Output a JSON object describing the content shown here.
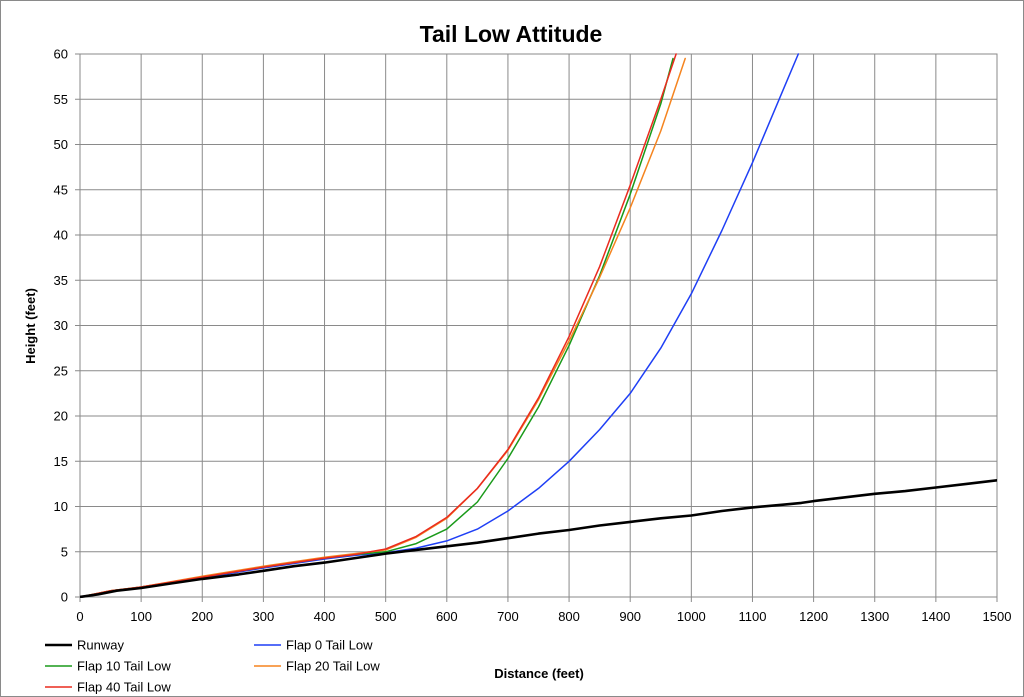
{
  "chart_data": {
    "type": "line",
    "title": "Tail Low Attitude",
    "xlabel": "Distance (feet)",
    "ylabel": "Height (feet)",
    "xlim": [
      0,
      1500
    ],
    "ylim": [
      0,
      60
    ],
    "xticks": [
      0,
      100,
      200,
      300,
      400,
      500,
      600,
      700,
      800,
      900,
      1000,
      1100,
      1200,
      1300,
      1400,
      1500
    ],
    "yticks": [
      0,
      5,
      10,
      15,
      20,
      25,
      30,
      35,
      40,
      45,
      50,
      55,
      60
    ],
    "grid": true,
    "legend_position": "bottom",
    "series": [
      {
        "name": "Runway",
        "color": "#000000",
        "x": [
          0,
          30,
          60,
          100,
          150,
          200,
          260,
          300,
          350,
          400,
          450,
          500,
          550,
          600,
          650,
          700,
          750,
          800,
          850,
          900,
          950,
          1000,
          1050,
          1100,
          1150,
          1180,
          1200,
          1250,
          1300,
          1350,
          1400,
          1450,
          1500
        ],
        "y": [
          0,
          0.3,
          0.7,
          1.0,
          1.5,
          2.0,
          2.5,
          2.9,
          3.4,
          3.8,
          4.3,
          4.8,
          5.2,
          5.6,
          6.0,
          6.5,
          7.0,
          7.4,
          7.9,
          8.3,
          8.7,
          9.0,
          9.5,
          9.9,
          10.2,
          10.4,
          10.6,
          11.0,
          11.4,
          11.7,
          12.1,
          12.5,
          12.9
        ]
      },
      {
        "name": "Flap 0 Tail Low",
        "color": "#1f3ff5",
        "x": [
          0,
          50,
          100,
          200,
          300,
          400,
          450,
          500,
          550,
          600,
          650,
          700,
          750,
          800,
          850,
          900,
          950,
          1000,
          1050,
          1100,
          1150,
          1175
        ],
        "y": [
          0,
          0.6,
          1.1,
          2.1,
          3.2,
          4.2,
          4.6,
          4.9,
          5.4,
          6.2,
          7.5,
          9.5,
          12.0,
          15.0,
          18.5,
          22.5,
          27.5,
          33.5,
          40.5,
          48.0,
          56.0,
          60.0
        ]
      },
      {
        "name": "Flap 10 Tail Low",
        "color": "#1a9a1a",
        "x": [
          0,
          50,
          100,
          200,
          300,
          400,
          450,
          500,
          550,
          600,
          650,
          700,
          750,
          800,
          850,
          900,
          950,
          970
        ],
        "y": [
          0,
          0.7,
          1.1,
          2.2,
          3.3,
          4.3,
          4.7,
          5.0,
          5.9,
          7.5,
          10.5,
          15.3,
          21.0,
          27.8,
          35.5,
          44.5,
          54.5,
          59.5
        ]
      },
      {
        "name": "Flap 20 Tail Low",
        "color": "#f5841f",
        "x": [
          0,
          50,
          100,
          200,
          300,
          400,
          450,
          500,
          550,
          600,
          650,
          700,
          750,
          800,
          850,
          900,
          950,
          990
        ],
        "y": [
          0,
          0.7,
          1.1,
          2.3,
          3.4,
          4.4,
          4.8,
          5.2,
          6.6,
          8.7,
          12.0,
          16.2,
          21.8,
          28.3,
          35.3,
          43.0,
          51.5,
          59.5
        ]
      },
      {
        "name": "Flap 40 Tail Low",
        "color": "#ea2b1f",
        "x": [
          0,
          50,
          100,
          200,
          300,
          400,
          450,
          500,
          550,
          600,
          650,
          700,
          750,
          800,
          850,
          900,
          950,
          975
        ],
        "y": [
          0,
          0.7,
          1.1,
          2.2,
          3.3,
          4.3,
          4.7,
          5.3,
          6.7,
          8.8,
          12.0,
          16.3,
          22.0,
          28.8,
          36.5,
          45.5,
          55.0,
          60.0
        ]
      }
    ]
  }
}
